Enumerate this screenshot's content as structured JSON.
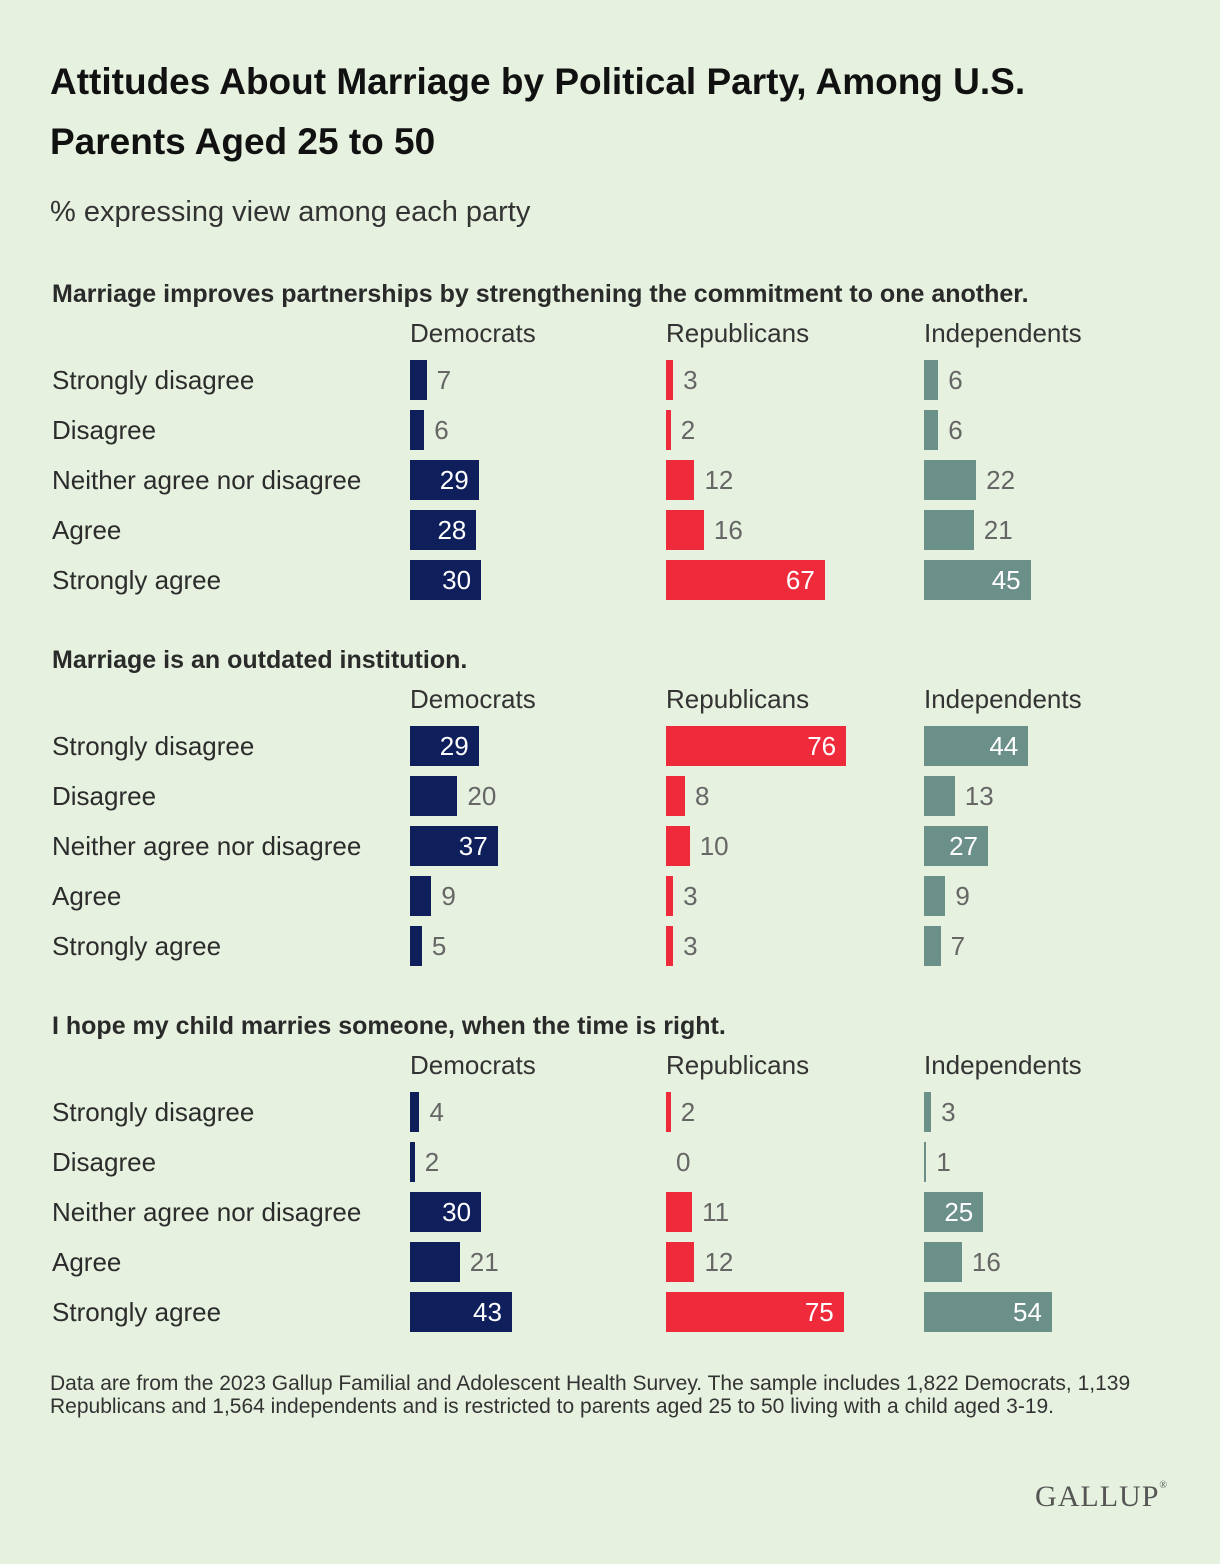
{
  "title": "Attitudes About Marriage by Political Party, Among U.S. Parents Aged 25 to 50",
  "subtitle": "% expressing view among each party",
  "footnote": "Data are from the 2023 Gallup Familial and Adolescent Health Survey. The sample includes 1,822 Democrats, 1,139 Republicans and 1,564 independents and is restricted to parents aged 25 to 50 living with a child aged 3-19.",
  "logo": "GALLUP",
  "colors": {
    "Democrats": "#0f1f5c",
    "Republicans": "#ee2a3b",
    "Independents": "#6b8f89",
    "background": "#e6f1df"
  },
  "chart_data": {
    "type": "bar",
    "categories": [
      "Strongly disagree",
      "Disagree",
      "Neither agree nor disagree",
      "Agree",
      "Strongly agree"
    ],
    "groups": [
      "Democrats",
      "Republicans",
      "Independents"
    ],
    "panels": [
      {
        "title": "Marriage improves partnerships by strengthening the commitment to one another.",
        "series": [
          {
            "name": "Democrats",
            "values": [
              7,
              6,
              29,
              28,
              30
            ]
          },
          {
            "name": "Republicans",
            "values": [
              3,
              2,
              12,
              16,
              67
            ]
          },
          {
            "name": "Independents",
            "values": [
              6,
              6,
              22,
              21,
              45
            ]
          }
        ]
      },
      {
        "title": "Marriage is an outdated institution.",
        "series": [
          {
            "name": "Democrats",
            "values": [
              29,
              20,
              37,
              9,
              5
            ]
          },
          {
            "name": "Republicans",
            "values": [
              76,
              8,
              10,
              3,
              3
            ]
          },
          {
            "name": "Independents",
            "values": [
              44,
              13,
              27,
              9,
              7
            ]
          }
        ]
      },
      {
        "title": "I hope my child marries someone, when the time is right.",
        "series": [
          {
            "name": "Democrats",
            "values": [
              4,
              2,
              30,
              21,
              43
            ]
          },
          {
            "name": "Republicans",
            "values": [
              2,
              0,
              11,
              12,
              75
            ]
          },
          {
            "name": "Independents",
            "values": [
              3,
              1,
              25,
              16,
              54
            ]
          }
        ]
      }
    ]
  }
}
